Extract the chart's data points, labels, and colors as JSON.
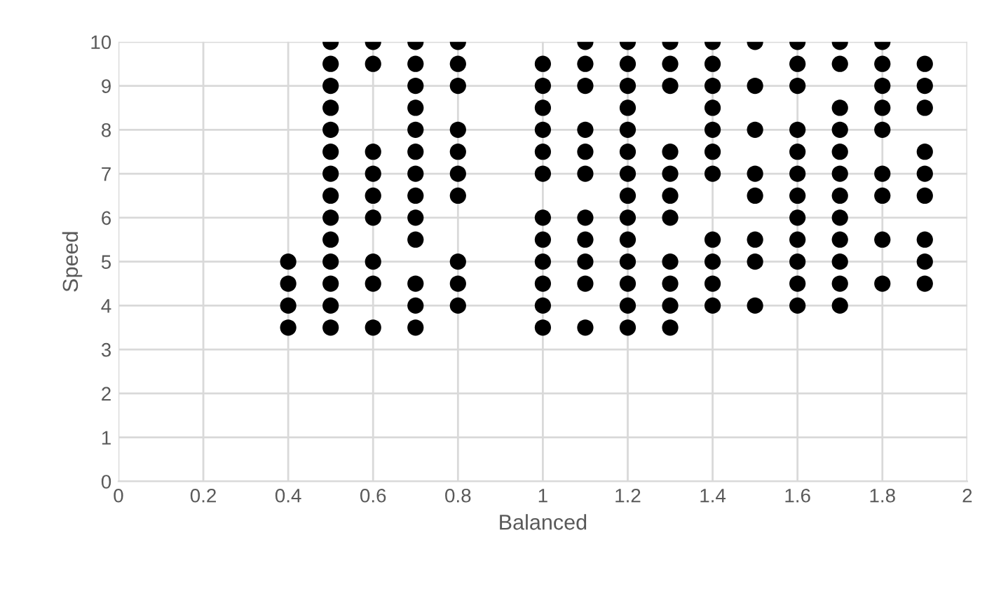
{
  "chart_data": {
    "type": "scatter",
    "xlabel": "Balanced",
    "ylabel": "Speed",
    "x": [
      0.4,
      0.4,
      0.4,
      0.4,
      0.5,
      0.5,
      0.5,
      0.5,
      0.5,
      0.5,
      0.5,
      0.5,
      0.5,
      0.5,
      0.5,
      0.5,
      0.5,
      0.5,
      0.6,
      0.6,
      0.6,
      0.6,
      0.6,
      0.6,
      0.6,
      0.6,
      0.6,
      0.7,
      0.7,
      0.7,
      0.7,
      0.7,
      0.7,
      0.7,
      0.7,
      0.7,
      0.7,
      0.7,
      0.7,
      0.7,
      0.8,
      0.8,
      0.8,
      0.8,
      0.8,
      0.8,
      0.8,
      0.8,
      0.8,
      0.8,
      1.0,
      1.0,
      1.0,
      1.0,
      1.0,
      1.0,
      1.0,
      1.0,
      1.0,
      1.0,
      1.0,
      1.0,
      1.1,
      1.1,
      1.1,
      1.1,
      1.1,
      1.1,
      1.1,
      1.1,
      1.1,
      1.1,
      1.1,
      1.2,
      1.2,
      1.2,
      1.2,
      1.2,
      1.2,
      1.2,
      1.2,
      1.2,
      1.2,
      1.2,
      1.2,
      1.2,
      1.2,
      1.3,
      1.3,
      1.3,
      1.3,
      1.3,
      1.3,
      1.3,
      1.3,
      1.3,
      1.3,
      1.3,
      1.4,
      1.4,
      1.4,
      1.4,
      1.4,
      1.4,
      1.4,
      1.4,
      1.4,
      1.4,
      1.4,
      1.5,
      1.5,
      1.5,
      1.5,
      1.5,
      1.5,
      1.5,
      1.5,
      1.6,
      1.6,
      1.6,
      1.6,
      1.6,
      1.6,
      1.6,
      1.6,
      1.6,
      1.6,
      1.6,
      1.6,
      1.7,
      1.7,
      1.7,
      1.7,
      1.7,
      1.7,
      1.7,
      1.7,
      1.7,
      1.7,
      1.7,
      1.7,
      1.8,
      1.8,
      1.8,
      1.8,
      1.8,
      1.8,
      1.8,
      1.8,
      1.8,
      1.9,
      1.9,
      1.9,
      1.9,
      1.9,
      1.9,
      1.9,
      1.9,
      1.9
    ],
    "values": [
      5,
      4.5,
      4,
      3.5,
      10,
      9.5,
      9,
      8.5,
      8,
      7.5,
      7,
      6.5,
      6,
      5.5,
      5,
      4.5,
      4,
      3.5,
      10,
      9.5,
      7.5,
      7,
      6.5,
      6,
      5,
      4.5,
      3.5,
      10,
      9.5,
      9,
      8.5,
      8,
      7.5,
      7,
      6.5,
      6,
      5.5,
      4.5,
      4,
      3.5,
      10,
      9.5,
      9,
      8,
      7.5,
      7,
      6.5,
      5,
      4.5,
      4,
      9.5,
      9,
      8.5,
      8,
      7.5,
      7,
      6,
      5.5,
      5,
      4.5,
      4,
      3.5,
      10,
      9.5,
      9,
      8,
      7.5,
      7,
      6,
      5.5,
      5,
      4.5,
      3.5,
      10,
      9.5,
      9,
      8.5,
      8,
      7.5,
      7,
      6.5,
      6,
      5.5,
      5,
      4.5,
      4,
      3.5,
      10,
      9.5,
      9,
      7.5,
      7,
      6.5,
      6,
      5,
      4.5,
      4,
      3.5,
      10,
      9.5,
      9,
      8.5,
      8,
      7.5,
      7,
      5.5,
      5,
      4.5,
      4,
      10,
      9,
      8,
      7,
      6.5,
      5.5,
      5,
      4,
      10,
      9.5,
      9,
      8,
      7.5,
      7,
      6.5,
      6,
      5.5,
      5,
      4.5,
      4,
      10,
      9.5,
      8.5,
      8,
      7.5,
      7,
      6.5,
      6,
      5.5,
      5,
      4.5,
      4,
      10,
      9.5,
      9,
      8.5,
      8,
      7,
      6.5,
      5.5,
      4.5,
      9.5,
      9,
      8.5,
      7.5,
      7,
      6.5,
      5.5,
      5,
      4.5
    ],
    "color": "#000000",
    "marker": "circle",
    "xlim": [
      0,
      2
    ],
    "xticks": [
      0,
      0.2,
      0.4,
      0.6,
      0.8,
      1,
      1.2,
      1.4,
      1.6,
      1.8,
      2
    ],
    "ylim": [
      0,
      10
    ],
    "yticks": [
      0,
      1,
      2,
      3,
      4,
      5,
      6,
      7,
      8,
      9,
      10
    ],
    "grid": true
  }
}
